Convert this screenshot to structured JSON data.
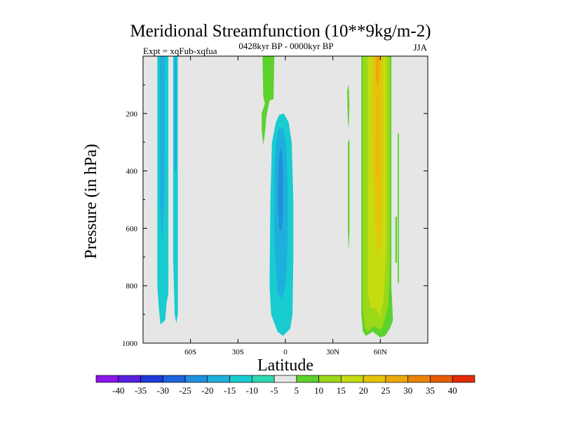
{
  "chart_data": {
    "type": "heatmap",
    "title": "Meridional Streamfunction (10**9kg/m-2)",
    "left_label": "Expt = xqFub-xqfua",
    "center_label": "0428kyr BP - 0000kyr BP",
    "right_label": "JJA",
    "xlabel": "Latitude",
    "ylabel": "Pressure (in hPa)",
    "xlim": [
      -90,
      90
    ],
    "ylim": [
      1000,
      0
    ],
    "x_ticks": [
      {
        "value": -60,
        "label": "60S"
      },
      {
        "value": -30,
        "label": "30S"
      },
      {
        "value": 0,
        "label": "0"
      },
      {
        "value": 30,
        "label": "30N"
      },
      {
        "value": 60,
        "label": "60N"
      }
    ],
    "y_ticks": [
      {
        "value": 200,
        "label": "200"
      },
      {
        "value": 400,
        "label": "400"
      },
      {
        "value": 600,
        "label": "600"
      },
      {
        "value": 800,
        "label": "800"
      },
      {
        "value": 1000,
        "label": "1000"
      }
    ],
    "background_color": "#e6e6e6",
    "colorbar": {
      "labels": [
        "-40",
        "-35",
        "-30",
        "-25",
        "-20",
        "-15",
        "-10",
        "-5",
        "5",
        "10",
        "15",
        "20",
        "25",
        "30",
        "35",
        "40"
      ],
      "colors": [
        "#8a16e8",
        "#5a1ee0",
        "#2038d8",
        "#1e62dc",
        "#2090dc",
        "#1eb0dc",
        "#18ccd0",
        "#30d8b0",
        "#e6e6e6",
        "#5cd22c",
        "#9ad818",
        "#c4dc10",
        "#e6c40c",
        "#ecaa0a",
        "#ea8408",
        "#e85c06",
        "#e22c04"
      ]
    },
    "regions": [
      {
        "name": "south-polar-cell-band",
        "value": -10,
        "color": "#18ccd0",
        "outline": [
          [
            -81,
            0
          ],
          [
            -74,
            0
          ],
          [
            -74,
            830
          ],
          [
            -75,
            855
          ],
          [
            -76,
            920
          ],
          [
            -79,
            935
          ],
          [
            -80,
            880
          ],
          [
            -81,
            800
          ],
          [
            -81,
            0
          ]
        ]
      },
      {
        "name": "south-polar-cell-core",
        "value": -15,
        "color": "#1eb0dc",
        "outline": [
          [
            -79.5,
            0
          ],
          [
            -76,
            0
          ],
          [
            -76.5,
            500
          ],
          [
            -78,
            650
          ],
          [
            -79.5,
            500
          ],
          [
            -79.5,
            0
          ]
        ]
      },
      {
        "name": "south-narrow-band",
        "value": -10,
        "color": "#18ccd0",
        "outline": [
          [
            -71,
            0
          ],
          [
            -68,
            0
          ],
          [
            -68,
            900
          ],
          [
            -69,
            930
          ],
          [
            -70,
            900
          ],
          [
            -71,
            700
          ],
          [
            -71,
            0
          ]
        ]
      },
      {
        "name": "south-narrow-band-core",
        "value": -15,
        "color": "#1eb0dc",
        "outline": [
          [
            -70.3,
            0
          ],
          [
            -68.8,
            0
          ],
          [
            -68.8,
            400
          ],
          [
            -70.3,
            400
          ],
          [
            -70.3,
            0
          ]
        ]
      },
      {
        "name": "upper-tropical-positive",
        "value": 5,
        "color": "#5cd22c",
        "outline": [
          [
            -14.5,
            0
          ],
          [
            -7,
            0
          ],
          [
            -7.5,
            150
          ],
          [
            -10,
            155
          ],
          [
            -12,
            210
          ],
          [
            -13,
            270
          ],
          [
            -14,
            310
          ],
          [
            -15,
            260
          ],
          [
            -15,
            200
          ],
          [
            -13,
            165
          ],
          [
            -14,
            140
          ],
          [
            -14.5,
            0
          ]
        ]
      },
      {
        "name": "hadley-cell-negative",
        "value": -10,
        "color": "#18ccd0",
        "outline": [
          [
            -4,
            205
          ],
          [
            -1,
            200
          ],
          [
            2,
            230
          ],
          [
            4,
            300
          ],
          [
            5,
            500
          ],
          [
            5,
            700
          ],
          [
            4.5,
            900
          ],
          [
            3,
            950
          ],
          [
            -1.5,
            975
          ],
          [
            -5,
            960
          ],
          [
            -9,
            900
          ],
          [
            -10,
            800
          ],
          [
            -9.5,
            500
          ],
          [
            -8.5,
            300
          ],
          [
            -6,
            230
          ],
          [
            -4,
            205
          ]
        ]
      },
      {
        "name": "hadley-cell-negative-mid",
        "value": -15,
        "color": "#1eb0dc",
        "outline": [
          [
            -4.5,
            255
          ],
          [
            -1.5,
            250
          ],
          [
            0.5,
            300
          ],
          [
            1.5,
            450
          ],
          [
            1.5,
            650
          ],
          [
            0.5,
            780
          ],
          [
            -2,
            850
          ],
          [
            -5,
            820
          ],
          [
            -7,
            650
          ],
          [
            -7,
            420
          ],
          [
            -6,
            300
          ],
          [
            -4.5,
            255
          ]
        ]
      },
      {
        "name": "hadley-cell-negative-core",
        "value": -20,
        "color": "#2090dc",
        "outline": [
          [
            -3.5,
            330
          ],
          [
            -2.5,
            320
          ],
          [
            -1.5,
            380
          ],
          [
            -1.5,
            560
          ],
          [
            -2.5,
            610
          ],
          [
            -4,
            600
          ],
          [
            -5,
            500
          ],
          [
            -4.5,
            380
          ],
          [
            -3.5,
            330
          ]
        ]
      },
      {
        "name": "northern-thin-positive-a",
        "value": 5,
        "color": "#5cd22c",
        "outline": [
          [
            39,
            120
          ],
          [
            40,
            100
          ],
          [
            40.5,
            170
          ],
          [
            40,
            250
          ],
          [
            39.5,
            230
          ],
          [
            39,
            120
          ]
        ]
      },
      {
        "name": "northern-thin-positive-b",
        "value": 5,
        "color": "#5cd22c",
        "outline": [
          [
            39.5,
            300
          ],
          [
            40.5,
            290
          ],
          [
            40.5,
            620
          ],
          [
            40,
            680
          ],
          [
            39.5,
            600
          ],
          [
            39.5,
            300
          ]
        ]
      },
      {
        "name": "northern-positive-band",
        "value": 5,
        "color": "#5cd22c",
        "outline": [
          [
            48,
            0
          ],
          [
            67,
            0
          ],
          [
            67,
            800
          ],
          [
            68,
            920
          ],
          [
            66,
            950
          ],
          [
            63,
            975
          ],
          [
            60,
            980
          ],
          [
            55,
            960
          ],
          [
            51,
            975
          ],
          [
            49,
            960
          ],
          [
            48,
            900
          ],
          [
            48,
            0
          ]
        ]
      },
      {
        "name": "northern-positive-10",
        "value": 10,
        "color": "#9ad818",
        "outline": [
          [
            49,
            0
          ],
          [
            66,
            0
          ],
          [
            66,
            720
          ],
          [
            65,
            870
          ],
          [
            62,
            935
          ],
          [
            60,
            955
          ],
          [
            56,
            940
          ],
          [
            52,
            960
          ],
          [
            50,
            940
          ],
          [
            49,
            880
          ],
          [
            49,
            0
          ]
        ]
      },
      {
        "name": "northern-positive-15",
        "value": 15,
        "color": "#c4dc10",
        "outline": [
          [
            52,
            0
          ],
          [
            64,
            0
          ],
          [
            64,
            650
          ],
          [
            62,
            850
          ],
          [
            60,
            910
          ],
          [
            57,
            880
          ],
          [
            54,
            880
          ],
          [
            52,
            820
          ],
          [
            52,
            0
          ]
        ]
      },
      {
        "name": "northern-positive-20",
        "value": 20,
        "color": "#e6c40c",
        "outline": [
          [
            55,
            0
          ],
          [
            61.5,
            0
          ],
          [
            61.5,
            450
          ],
          [
            60.5,
            640
          ],
          [
            58.5,
            700
          ],
          [
            57,
            600
          ],
          [
            55.5,
            400
          ],
          [
            55,
            0
          ]
        ]
      },
      {
        "name": "northern-positive-25",
        "value": 25,
        "color": "#ecaa0a",
        "outline": [
          [
            57,
            0
          ],
          [
            59.5,
            0
          ],
          [
            59.5,
            70
          ],
          [
            58.2,
            110
          ],
          [
            57,
            70
          ],
          [
            57,
            0
          ]
        ]
      },
      {
        "name": "northern-core-thin",
        "value": 25,
        "color": "#ecaa0a",
        "outline": [
          [
            57.8,
            140
          ],
          [
            58.4,
            140
          ],
          [
            58.4,
            420
          ],
          [
            57.8,
            420
          ],
          [
            57.8,
            140
          ]
        ]
      },
      {
        "name": "far-north-sliver",
        "value": 5,
        "color": "#5cd22c",
        "outline": [
          [
            71,
            270
          ],
          [
            71.8,
            270
          ],
          [
            71.8,
            790
          ],
          [
            71,
            790
          ],
          [
            71,
            270
          ]
        ]
      },
      {
        "name": "far-north-sliver-lower",
        "value": 5,
        "color": "#5cd22c",
        "outline": [
          [
            69.5,
            560
          ],
          [
            70.5,
            560
          ],
          [
            70.5,
            720
          ],
          [
            69.5,
            720
          ],
          [
            69.5,
            560
          ]
        ]
      }
    ]
  }
}
